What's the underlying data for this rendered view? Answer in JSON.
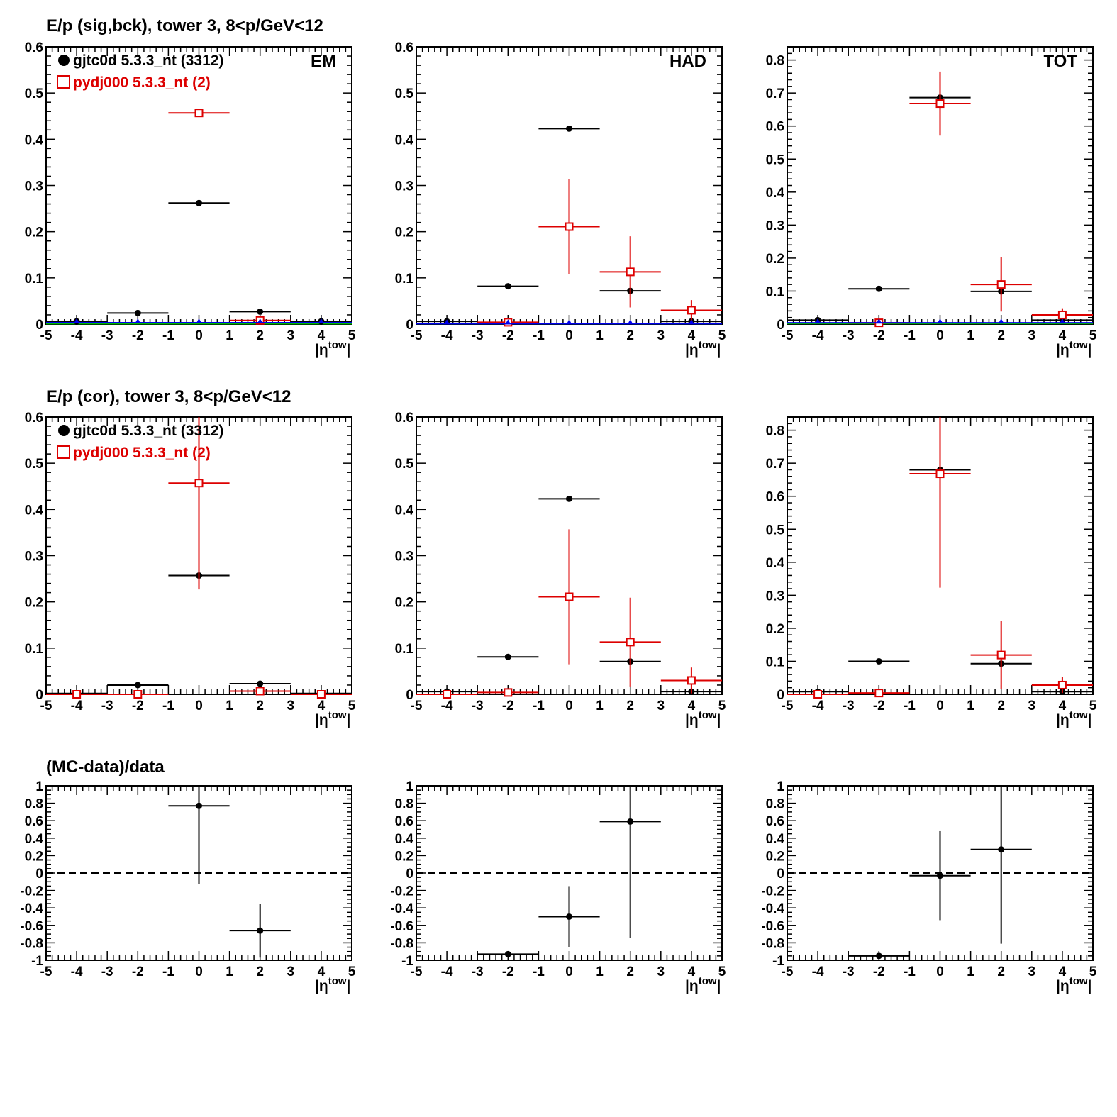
{
  "row_titles": [
    "E/p (sig,bck), tower 3,  8<p/GeV<12",
    "E/p (cor), tower 3,  8<p/GeV<12",
    "(MC-data)/data"
  ],
  "legend": {
    "data_label": "gjtc0d 5.3.3_nt (3312)",
    "mc_label": "pydj000 5.3.3_nt (2)"
  },
  "x_axis_title": "|η^tow|",
  "x_axis_title_main": "|η",
  "x_axis_title_sup": "tow",
  "x_axis_title_end": "|",
  "colors": {
    "data": "#000000",
    "mc": "#dd0000",
    "blue": "#0000ee",
    "green": "#00bb00",
    "axis": "#000000"
  },
  "chart_data": [
    {
      "type": "scatter",
      "row": 0,
      "col": 0,
      "corner_label": "EM",
      "xlim": [
        -5,
        5
      ],
      "ylim": [
        0,
        0.6
      ],
      "xticks": [
        -5,
        -4,
        -3,
        -2,
        -1,
        0,
        1,
        2,
        3,
        4,
        5
      ],
      "yticks": [
        0,
        0.1,
        0.2,
        0.3,
        0.4,
        0.5,
        0.6
      ],
      "ytick_labels": [
        "0",
        "0.1",
        "0.2",
        "0.3",
        "0.4",
        "0.5",
        "0.6"
      ],
      "legend": true,
      "series": [
        {
          "name": "gjtc0d 5.3.3_nt (3312)",
          "color": "#000000",
          "marker": "dot",
          "points": [
            {
              "x": -4,
              "xerr": 1,
              "y": 0.006,
              "yerr": 0
            },
            {
              "x": -2,
              "xerr": 1,
              "y": 0.024,
              "yerr": 0
            },
            {
              "x": 0,
              "xerr": 1,
              "y": 0.262,
              "yerr": 0
            },
            {
              "x": 2,
              "xerr": 1,
              "y": 0.027,
              "yerr": 0
            },
            {
              "x": 4,
              "xerr": 1,
              "y": 0.006,
              "yerr": 0
            }
          ]
        },
        {
          "name": "pydj000 5.3.3_nt (2)",
          "color": "#dd0000",
          "marker": "square",
          "points": [
            {
              "x": 0,
              "xerr": 1,
              "y": 0.457,
              "yerr": 0
            },
            {
              "x": 2,
              "xerr": 1,
              "y": 0.008,
              "yerr": 0
            }
          ]
        },
        {
          "color": "#0000ee",
          "marker": "triangle",
          "points": [
            {
              "x": -4,
              "xerr": 1,
              "y": 0.003,
              "yerr": 0
            },
            {
              "x": -2,
              "xerr": 1,
              "y": 0.003,
              "yerr": 0
            },
            {
              "x": 0,
              "xerr": 1,
              "y": 0.003,
              "yerr": 0
            },
            {
              "x": 2,
              "xerr": 1,
              "y": 0.003,
              "yerr": 0
            },
            {
              "x": 4,
              "xerr": 1,
              "y": 0.003,
              "yerr": 0
            }
          ]
        }
      ],
      "hlines": [
        {
          "y": 0.001,
          "color": "#00bb00",
          "dashed": false
        }
      ]
    },
    {
      "type": "scatter",
      "row": 0,
      "col": 1,
      "corner_label": "HAD",
      "xlim": [
        -5,
        5
      ],
      "ylim": [
        0,
        0.6
      ],
      "xticks": [
        -5,
        -4,
        -3,
        -2,
        -1,
        0,
        1,
        2,
        3,
        4,
        5
      ],
      "yticks": [
        0,
        0.1,
        0.2,
        0.3,
        0.4,
        0.5,
        0.6
      ],
      "ytick_labels": [
        "0",
        "0.1",
        "0.2",
        "0.3",
        "0.4",
        "0.5",
        "0.6"
      ],
      "legend": false,
      "series": [
        {
          "color": "#000000",
          "marker": "dot",
          "points": [
            {
              "x": -4,
              "xerr": 1,
              "y": 0.006,
              "yerr": 0
            },
            {
              "x": -2,
              "xerr": 1,
              "y": 0.082,
              "yerr": 0
            },
            {
              "x": 0,
              "xerr": 1,
              "y": 0.423,
              "yerr": 0
            },
            {
              "x": 2,
              "xerr": 1,
              "y": 0.072,
              "yerr": 0
            },
            {
              "x": 4,
              "xerr": 1,
              "y": 0.006,
              "yerr": 0
            }
          ]
        },
        {
          "color": "#dd0000",
          "marker": "square",
          "points": [
            {
              "x": -2,
              "xerr": 1,
              "y": 0.004,
              "yerr": 0
            },
            {
              "x": 0,
              "xerr": 1,
              "y": 0.211,
              "yerr": 0.102
            },
            {
              "x": 2,
              "xerr": 1,
              "y": 0.113,
              "yerr": 0.077
            },
            {
              "x": 4,
              "xerr": 1,
              "y": 0.03,
              "yerr": 0.022
            }
          ]
        },
        {
          "color": "#0000ee",
          "marker": "triangle",
          "points": [
            {
              "x": -4,
              "xerr": 1,
              "y": 0.001,
              "yerr": 0
            },
            {
              "x": -2,
              "xerr": 1,
              "y": 0.001,
              "yerr": 0
            },
            {
              "x": 0,
              "xerr": 1,
              "y": 0.001,
              "yerr": 0
            },
            {
              "x": 2,
              "xerr": 1,
              "y": 0.001,
              "yerr": 0
            },
            {
              "x": 4,
              "xerr": 1,
              "y": 0.001,
              "yerr": 0
            }
          ]
        }
      ],
      "hlines": [
        {
          "y": 0.001,
          "color": "#00bb00",
          "dashed": false
        }
      ]
    },
    {
      "type": "scatter",
      "row": 0,
      "col": 2,
      "corner_label": "TOT",
      "xlim": [
        -5,
        5
      ],
      "ylim": [
        0,
        0.84
      ],
      "xticks": [
        -5,
        -4,
        -3,
        -2,
        -1,
        0,
        1,
        2,
        3,
        4,
        5
      ],
      "yticks": [
        0,
        0.1,
        0.2,
        0.3,
        0.4,
        0.5,
        0.6,
        0.7,
        0.8
      ],
      "ytick_labels": [
        "0",
        "0.1",
        "0.2",
        "0.3",
        "0.4",
        "0.5",
        "0.6",
        "0.7",
        "0.8"
      ],
      "legend": false,
      "series": [
        {
          "color": "#000000",
          "marker": "dot",
          "points": [
            {
              "x": -4,
              "xerr": 1,
              "y": 0.012,
              "yerr": 0
            },
            {
              "x": -2,
              "xerr": 1,
              "y": 0.107,
              "yerr": 0
            },
            {
              "x": 0,
              "xerr": 1,
              "y": 0.686,
              "yerr": 0
            },
            {
              "x": 2,
              "xerr": 1,
              "y": 0.099,
              "yerr": 0
            },
            {
              "x": 4,
              "xerr": 1,
              "y": 0.012,
              "yerr": 0
            }
          ]
        },
        {
          "color": "#dd0000",
          "marker": "square",
          "points": [
            {
              "x": -2,
              "xerr": 1,
              "y": 0.004,
              "yerr": 0
            },
            {
              "x": 0,
              "xerr": 1,
              "y": 0.668,
              "yerr": 0.097
            },
            {
              "x": 2,
              "xerr": 1,
              "y": 0.12,
              "yerr": 0.082
            },
            {
              "x": 4,
              "xerr": 1,
              "y": 0.028,
              "yerr": 0.02
            }
          ]
        },
        {
          "color": "#0000ee",
          "marker": "triangle",
          "points": [
            {
              "x": -4,
              "xerr": 1,
              "y": 0.004,
              "yerr": 0
            },
            {
              "x": -2,
              "xerr": 1,
              "y": 0.004,
              "yerr": 0
            },
            {
              "x": 0,
              "xerr": 1,
              "y": 0.004,
              "yerr": 0
            },
            {
              "x": 2,
              "xerr": 1,
              "y": 0.004,
              "yerr": 0
            },
            {
              "x": 4,
              "xerr": 1,
              "y": 0.004,
              "yerr": 0
            }
          ]
        }
      ],
      "hlines": [
        {
          "y": 0.002,
          "color": "#00bb00",
          "dashed": false
        }
      ]
    },
    {
      "type": "scatter",
      "row": 1,
      "col": 0,
      "corner_label": "",
      "xlim": [
        -5,
        5
      ],
      "ylim": [
        0,
        0.6
      ],
      "xticks": [
        -5,
        -4,
        -3,
        -2,
        -1,
        0,
        1,
        2,
        3,
        4,
        5
      ],
      "yticks": [
        0,
        0.1,
        0.2,
        0.3,
        0.4,
        0.5,
        0.6
      ],
      "ytick_labels": [
        "0",
        "0.1",
        "0.2",
        "0.3",
        "0.4",
        "0.5",
        "0.6"
      ],
      "legend": true,
      "series": [
        {
          "name": "gjtc0d 5.3.3_nt (3312)",
          "color": "#000000",
          "marker": "dot",
          "points": [
            {
              "x": -4,
              "xerr": 1,
              "y": 0.002,
              "yerr": 0
            },
            {
              "x": -2,
              "xerr": 1,
              "y": 0.02,
              "yerr": 0
            },
            {
              "x": 0,
              "xerr": 1,
              "y": 0.257,
              "yerr": 0
            },
            {
              "x": 2,
              "xerr": 1,
              "y": 0.023,
              "yerr": 0
            },
            {
              "x": 4,
              "xerr": 1,
              "y": 0.002,
              "yerr": 0
            }
          ]
        },
        {
          "name": "pydj000 5.3.3_nt (2)",
          "color": "#dd0000",
          "marker": "square",
          "points": [
            {
              "x": -4,
              "xerr": 1,
              "y": 0.0,
              "yerr": 0
            },
            {
              "x": -2,
              "xerr": 1,
              "y": 0.0,
              "yerr": 0
            },
            {
              "x": 0,
              "xerr": 1,
              "y": 0.457,
              "yerr": 0.23
            },
            {
              "x": 2,
              "xerr": 1,
              "y": 0.007,
              "yerr": 0
            },
            {
              "x": 4,
              "xerr": 1,
              "y": 0.0,
              "yerr": 0
            }
          ]
        }
      ],
      "hlines": []
    },
    {
      "type": "scatter",
      "row": 1,
      "col": 1,
      "corner_label": "",
      "xlim": [
        -5,
        5
      ],
      "ylim": [
        0,
        0.6
      ],
      "xticks": [
        -5,
        -4,
        -3,
        -2,
        -1,
        0,
        1,
        2,
        3,
        4,
        5
      ],
      "yticks": [
        0,
        0.1,
        0.2,
        0.3,
        0.4,
        0.5,
        0.6
      ],
      "ytick_labels": [
        "0",
        "0.1",
        "0.2",
        "0.3",
        "0.4",
        "0.5",
        "0.6"
      ],
      "legend": false,
      "series": [
        {
          "color": "#000000",
          "marker": "dot",
          "points": [
            {
              "x": -4,
              "xerr": 1,
              "y": 0.006,
              "yerr": 0
            },
            {
              "x": -2,
              "xerr": 1,
              "y": 0.081,
              "yerr": 0
            },
            {
              "x": 0,
              "xerr": 1,
              "y": 0.423,
              "yerr": 0
            },
            {
              "x": 2,
              "xerr": 1,
              "y": 0.071,
              "yerr": 0
            },
            {
              "x": 4,
              "xerr": 1,
              "y": 0.006,
              "yerr": 0
            }
          ]
        },
        {
          "color": "#dd0000",
          "marker": "square",
          "points": [
            {
              "x": -4,
              "xerr": 1,
              "y": 0.0,
              "yerr": 0
            },
            {
              "x": -2,
              "xerr": 1,
              "y": 0.004,
              "yerr": 0
            },
            {
              "x": 0,
              "xerr": 1,
              "y": 0.211,
              "yerr": 0.146
            },
            {
              "x": 2,
              "xerr": 1,
              "y": 0.113,
              "yerr": 0.096
            },
            {
              "x": 4,
              "xerr": 1,
              "y": 0.03,
              "yerr": 0.028
            }
          ]
        }
      ],
      "hlines": []
    },
    {
      "type": "scatter",
      "row": 1,
      "col": 2,
      "corner_label": "",
      "xlim": [
        -5,
        5
      ],
      "ylim": [
        0,
        0.84
      ],
      "xticks": [
        -5,
        -4,
        -3,
        -2,
        -1,
        0,
        1,
        2,
        3,
        4,
        5
      ],
      "yticks": [
        0,
        0.1,
        0.2,
        0.3,
        0.4,
        0.5,
        0.6,
        0.7,
        0.8
      ],
      "ytick_labels": [
        "0",
        "0.1",
        "0.2",
        "0.3",
        "0.4",
        "0.5",
        "0.6",
        "0.7",
        "0.8"
      ],
      "legend": false,
      "series": [
        {
          "color": "#000000",
          "marker": "dot",
          "points": [
            {
              "x": -4,
              "xerr": 1,
              "y": 0.008,
              "yerr": 0
            },
            {
              "x": -2,
              "xerr": 1,
              "y": 0.1,
              "yerr": 0
            },
            {
              "x": 0,
              "xerr": 1,
              "y": 0.68,
              "yerr": 0
            },
            {
              "x": 2,
              "xerr": 1,
              "y": 0.093,
              "yerr": 0
            },
            {
              "x": 4,
              "xerr": 1,
              "y": 0.008,
              "yerr": 0
            }
          ]
        },
        {
          "color": "#dd0000",
          "marker": "square",
          "points": [
            {
              "x": -4,
              "xerr": 1,
              "y": 0.0,
              "yerr": 0
            },
            {
              "x": -2,
              "xerr": 1,
              "y": 0.004,
              "yerr": 0
            },
            {
              "x": 0,
              "xerr": 1,
              "y": 0.668,
              "yerr": 0.345
            },
            {
              "x": 2,
              "xerr": 1,
              "y": 0.119,
              "yerr": 0.103
            },
            {
              "x": 4,
              "xerr": 1,
              "y": 0.028,
              "yerr": 0.024
            }
          ]
        }
      ],
      "hlines": []
    },
    {
      "type": "scatter",
      "row": 2,
      "col": 0,
      "corner_label": "",
      "xlim": [
        -5,
        5
      ],
      "ylim": [
        -1,
        1
      ],
      "xticks": [
        -5,
        -4,
        -3,
        -2,
        -1,
        0,
        1,
        2,
        3,
        4,
        5
      ],
      "yticks": [
        -1,
        -0.8,
        -0.6,
        -0.4,
        -0.2,
        0,
        0.2,
        0.4,
        0.6,
        0.8,
        1
      ],
      "ytick_labels": [
        "-1",
        "-0.8",
        "-0.6",
        "-0.4",
        "-0.2",
        "0",
        "0.2",
        "0.4",
        "0.6",
        "0.8",
        "1"
      ],
      "legend": false,
      "series": [
        {
          "color": "#000000",
          "marker": "dot",
          "points": [
            {
              "x": 0,
              "xerr": 1,
              "y": 0.77,
              "yerr": 0.9
            },
            {
              "x": 2,
              "xerr": 1,
              "y": -0.66,
              "yerr": 0.31
            }
          ]
        }
      ],
      "hlines": [
        {
          "y": 0,
          "color": "#000000",
          "dashed": true
        }
      ]
    },
    {
      "type": "scatter",
      "row": 2,
      "col": 1,
      "corner_label": "",
      "xlim": [
        -5,
        5
      ],
      "ylim": [
        -1,
        1
      ],
      "xticks": [
        -5,
        -4,
        -3,
        -2,
        -1,
        0,
        1,
        2,
        3,
        4,
        5
      ],
      "yticks": [
        -1,
        -0.8,
        -0.6,
        -0.4,
        -0.2,
        0,
        0.2,
        0.4,
        0.6,
        0.8,
        1
      ],
      "ytick_labels": [
        "-1",
        "-0.8",
        "-0.6",
        "-0.4",
        "-0.2",
        "0",
        "0.2",
        "0.4",
        "0.6",
        "0.8",
        "1"
      ],
      "legend": false,
      "series": [
        {
          "color": "#000000",
          "marker": "dot",
          "points": [
            {
              "x": -2,
              "xerr": 1,
              "y": -0.93,
              "yerr": 0
            },
            {
              "x": 0,
              "xerr": 1,
              "y": -0.5,
              "yerr": 0.35
            },
            {
              "x": 2,
              "xerr": 1,
              "y": 0.59,
              "yerr": 1.33
            }
          ]
        }
      ],
      "hlines": [
        {
          "y": 0,
          "color": "#000000",
          "dashed": true
        }
      ]
    },
    {
      "type": "scatter",
      "row": 2,
      "col": 2,
      "corner_label": "",
      "xlim": [
        -5,
        5
      ],
      "ylim": [
        -1,
        1
      ],
      "xticks": [
        -5,
        -4,
        -3,
        -2,
        -1,
        0,
        1,
        2,
        3,
        4,
        5
      ],
      "yticks": [
        -1,
        -0.8,
        -0.6,
        -0.4,
        -0.2,
        0,
        0.2,
        0.4,
        0.6,
        0.8,
        1
      ],
      "ytick_labels": [
        "-1",
        "-0.8",
        "-0.6",
        "-0.4",
        "-0.2",
        "0",
        "0.2",
        "0.4",
        "0.6",
        "0.8",
        "1"
      ],
      "legend": false,
      "series": [
        {
          "color": "#000000",
          "marker": "dot",
          "points": [
            {
              "x": -2,
              "xerr": 1,
              "y": -0.95,
              "yerr": 0
            },
            {
              "x": 0,
              "xerr": 1,
              "y": -0.03,
              "yerr": 0.51
            },
            {
              "x": 2,
              "xerr": 1,
              "y": 0.27,
              "yerr": 1.08
            }
          ]
        }
      ],
      "hlines": [
        {
          "y": 0,
          "color": "#000000",
          "dashed": true
        }
      ]
    }
  ]
}
